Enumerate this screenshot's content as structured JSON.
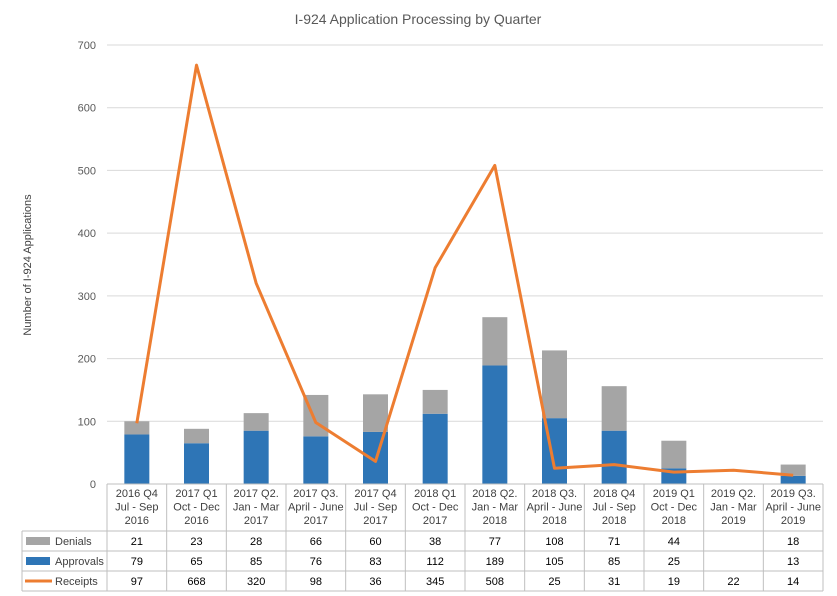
{
  "chart_data": {
    "type": "bar",
    "title": "I-924 Application Processing by Quarter",
    "ylabel": "Number  of I-924 Applications",
    "ylim": [
      0,
      700
    ],
    "yticks": [
      0,
      100,
      200,
      300,
      400,
      500,
      600,
      700
    ],
    "grid": true,
    "legend": "data-table",
    "categories": [
      [
        "2016 Q4",
        "Jul - Sep",
        "2016"
      ],
      [
        "2017 Q1",
        "Oct - Dec",
        "2016"
      ],
      [
        "2017 Q2.",
        "Jan - Mar",
        "2017"
      ],
      [
        "2017 Q3.",
        "April - June",
        "2017"
      ],
      [
        "2017 Q4",
        "Jul - Sep",
        "2017"
      ],
      [
        "2018 Q1",
        "Oct - Dec",
        "2017"
      ],
      [
        "2018 Q2.",
        "Jan - Mar",
        "2018"
      ],
      [
        "2018 Q3.",
        "April - June",
        "2018"
      ],
      [
        "2018 Q4",
        "Jul - Sep",
        "2018"
      ],
      [
        "2019  Q1",
        "Oct - Dec",
        "2018"
      ],
      [
        "2019 Q2.",
        "Jan - Mar",
        "2019"
      ],
      [
        "2019 Q3.",
        "April - June",
        "2019"
      ]
    ],
    "series": [
      {
        "name": "Denials",
        "kind": "stacked-bar",
        "color": "#a5a5a5",
        "values": [
          21,
          23,
          28,
          66,
          60,
          38,
          77,
          108,
          71,
          44,
          null,
          18
        ]
      },
      {
        "name": "Approvals",
        "kind": "stacked-bar",
        "color": "#2e75b6",
        "values": [
          79,
          65,
          85,
          76,
          83,
          112,
          189,
          105,
          85,
          25,
          null,
          13
        ]
      },
      {
        "name": "Receipts",
        "kind": "line",
        "color": "#ed7d31",
        "values": [
          97,
          668,
          320,
          98,
          36,
          345,
          508,
          25,
          31,
          19,
          22,
          14
        ]
      }
    ]
  }
}
